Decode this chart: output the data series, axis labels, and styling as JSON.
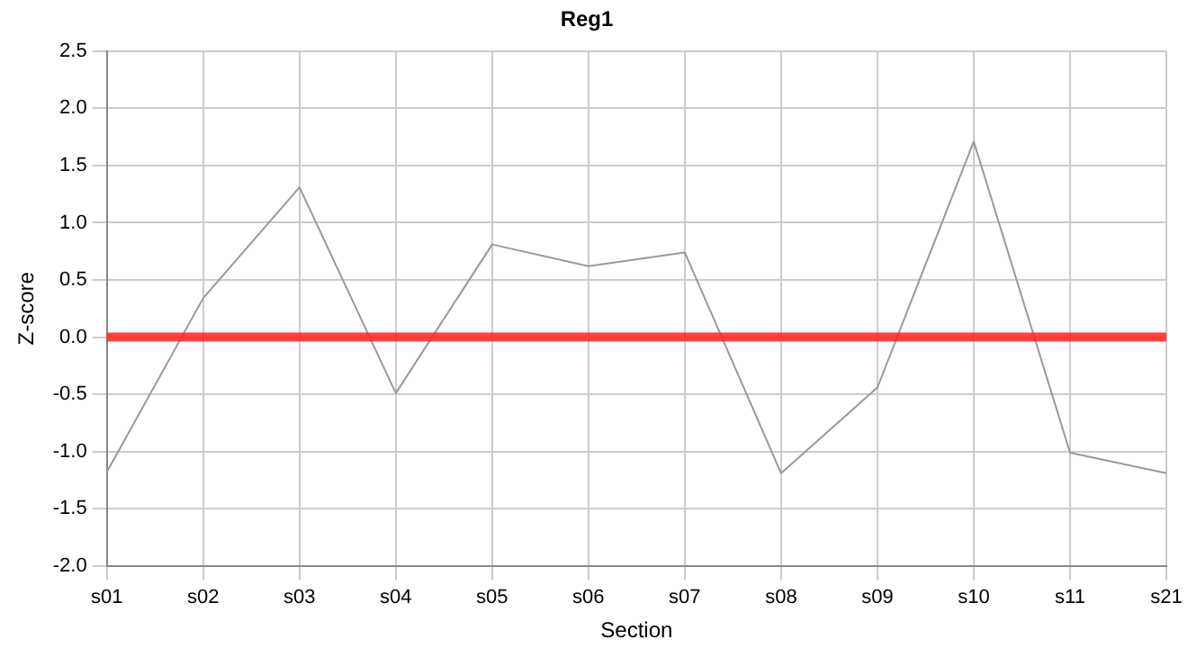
{
  "chart_data": {
    "type": "line",
    "title": "Reg1",
    "xlabel": "Section",
    "ylabel": "Z-score",
    "categories": [
      "s01",
      "s02",
      "s03",
      "s04",
      "s05",
      "s06",
      "s07",
      "s08",
      "s09",
      "s10",
      "s11",
      "s21"
    ],
    "series": [
      {
        "color": "#999999",
        "values": [
          -1.18,
          0.34,
          1.31,
          -0.49,
          0.81,
          0.62,
          0.74,
          -1.19,
          -0.44,
          1.71,
          -1.01,
          -1.19
        ]
      }
    ],
    "ylim": [
      -2.0,
      2.5
    ],
    "yticks": [
      {
        "value": -2,
        "label": "-2.0"
      },
      {
        "value": -1.5,
        "label": "-1.5"
      },
      {
        "value": -1,
        "label": "-1.0"
      },
      {
        "value": -0.5,
        "label": "-0.5"
      },
      {
        "value": 0,
        "label": "0.0"
      },
      {
        "value": 0.5,
        "label": "0.5"
      },
      {
        "value": 1,
        "label": "1.0"
      },
      {
        "value": 1.5,
        "label": "1.5"
      },
      {
        "value": 2,
        "label": "2.0"
      },
      {
        "value": 2.5,
        "label": "2.5"
      }
    ],
    "ref_lines": [
      {
        "axis": "y",
        "value": 0,
        "color": "#ff2020"
      }
    ],
    "grid": true,
    "legend": false,
    "marker": "none",
    "line_style": "solid"
  }
}
